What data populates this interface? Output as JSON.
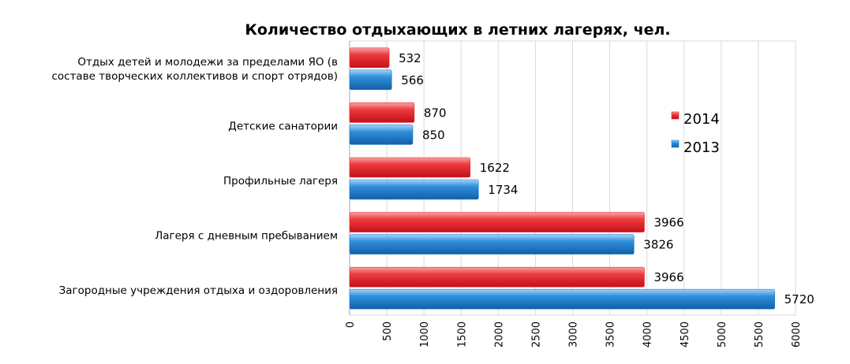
{
  "chart_data": {
    "type": "bar",
    "orientation": "horizontal",
    "title": "Количество отдыхающих в летних лагерях, чел.",
    "categories": [
      [
        "Отдых детей и молодежи за пределами ЯО (в",
        "составе творческих коллективов и спорт отрядов)"
      ],
      [
        "Детские санатории"
      ],
      [
        "Профильные лагеря"
      ],
      [
        "Лагеря с дневным пребыванием"
      ],
      [
        "Загородные учреждения отдыха и оздоровления"
      ]
    ],
    "series": [
      {
        "name": "2014",
        "color": "#e8262b",
        "values": [
          532,
          870,
          1622,
          3966,
          3966
        ]
      },
      {
        "name": "2013",
        "color": "#1f7fd0",
        "values": [
          566,
          850,
          1734,
          3826,
          5720
        ]
      }
    ],
    "xlim": [
      0,
      6000
    ],
    "xticks": [
      0,
      500,
      1000,
      1500,
      2000,
      2500,
      3000,
      3500,
      4000,
      4500,
      5000,
      5500,
      6000
    ],
    "grid": true,
    "legend": "right"
  }
}
